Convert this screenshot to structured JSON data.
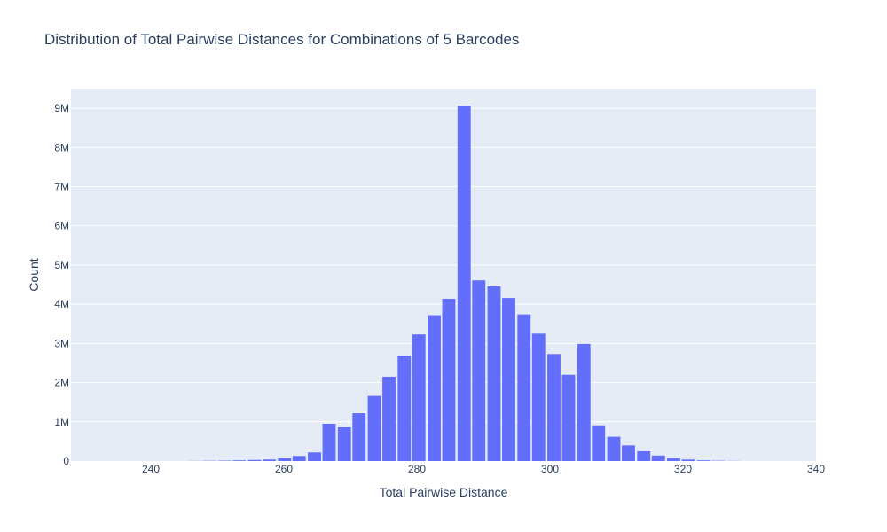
{
  "chart_data": {
    "type": "bar",
    "title": "Distribution of Total Pairwise Distances for Combinations of 5 Barcodes",
    "xlabel": "Total Pairwise Distance",
    "ylabel": "Count",
    "xlim": [
      228,
      340
    ],
    "ylim": [
      0,
      9500000
    ],
    "bin_width": 2.25,
    "x_ticks": [
      {
        "value": 240,
        "label": "240"
      },
      {
        "value": 260,
        "label": "260"
      },
      {
        "value": 280,
        "label": "280"
      },
      {
        "value": 300,
        "label": "300"
      },
      {
        "value": 320,
        "label": "320"
      },
      {
        "value": 340,
        "label": "340"
      }
    ],
    "y_ticks": [
      {
        "value": 0,
        "label": "0"
      },
      {
        "value": 1000000,
        "label": "1M"
      },
      {
        "value": 2000000,
        "label": "2M"
      },
      {
        "value": 3000000,
        "label": "3M"
      },
      {
        "value": 4000000,
        "label": "4M"
      },
      {
        "value": 5000000,
        "label": "5M"
      },
      {
        "value": 6000000,
        "label": "6M"
      },
      {
        "value": 7000000,
        "label": "7M"
      },
      {
        "value": 8000000,
        "label": "8M"
      },
      {
        "value": 9000000,
        "label": "9M"
      }
    ],
    "grid": true,
    "bar_color": "#636efa",
    "plot_bg": "#e5ecf6",
    "bars": [
      {
        "x": 246.6,
        "y": 3000
      },
      {
        "x": 248.8,
        "y": 6000
      },
      {
        "x": 251.1,
        "y": 10000
      },
      {
        "x": 253.3,
        "y": 18000
      },
      {
        "x": 255.6,
        "y": 28000
      },
      {
        "x": 257.8,
        "y": 40000
      },
      {
        "x": 260.1,
        "y": 75000
      },
      {
        "x": 262.3,
        "y": 130000
      },
      {
        "x": 264.6,
        "y": 220000
      },
      {
        "x": 266.8,
        "y": 950000
      },
      {
        "x": 269.1,
        "y": 860000
      },
      {
        "x": 271.3,
        "y": 1220000
      },
      {
        "x": 273.6,
        "y": 1660000
      },
      {
        "x": 275.8,
        "y": 2150000
      },
      {
        "x": 278.1,
        "y": 2690000
      },
      {
        "x": 280.3,
        "y": 3230000
      },
      {
        "x": 282.6,
        "y": 3720000
      },
      {
        "x": 284.8,
        "y": 4140000
      },
      {
        "x": 287.1,
        "y": 9060000
      },
      {
        "x": 289.3,
        "y": 4610000
      },
      {
        "x": 291.6,
        "y": 4460000
      },
      {
        "x": 293.8,
        "y": 4160000
      },
      {
        "x": 296.1,
        "y": 3740000
      },
      {
        "x": 298.3,
        "y": 3250000
      },
      {
        "x": 300.6,
        "y": 2730000
      },
      {
        "x": 302.8,
        "y": 2200000
      },
      {
        "x": 305.1,
        "y": 2990000
      },
      {
        "x": 307.3,
        "y": 910000
      },
      {
        "x": 309.6,
        "y": 620000
      },
      {
        "x": 311.8,
        "y": 400000
      },
      {
        "x": 314.1,
        "y": 250000
      },
      {
        "x": 316.3,
        "y": 140000
      },
      {
        "x": 318.6,
        "y": 75000
      },
      {
        "x": 320.8,
        "y": 38000
      },
      {
        "x": 323.1,
        "y": 18000
      },
      {
        "x": 325.3,
        "y": 8000
      },
      {
        "x": 327.6,
        "y": 3000
      }
    ]
  }
}
